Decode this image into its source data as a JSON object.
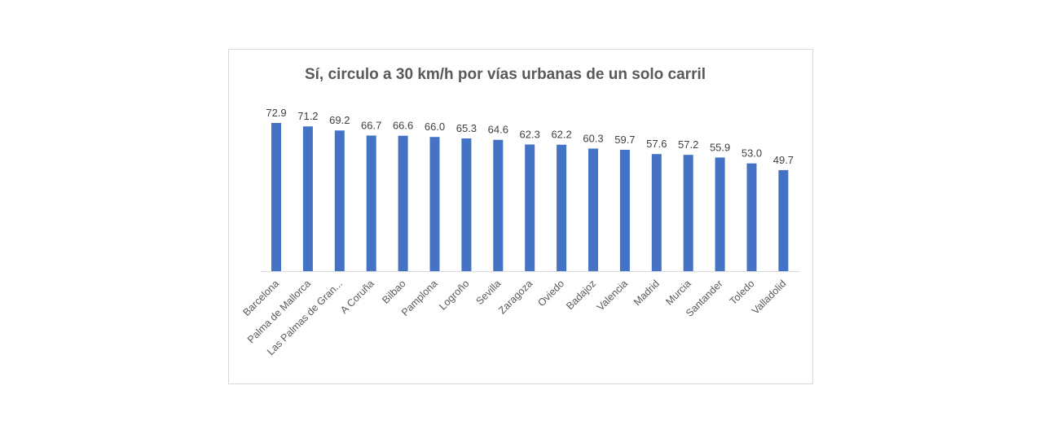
{
  "chart_data": {
    "type": "bar",
    "title": "Sí, circulo a 30 km/h por vías urbanas de un solo carril",
    "xlabel": "",
    "ylabel": "",
    "ylim": [
      0,
      72.9
    ],
    "grid": false,
    "legend": "none",
    "bar_color": "#4472C4",
    "categories": [
      "Barcelona",
      "Palma de Mallorca",
      "Las Palmas de Gran...",
      "A Coruña",
      "Bilbao",
      "Pamplona",
      "Logroño",
      "Sevilla",
      "Zaragoza",
      "Oviedo",
      "Badajoz",
      "Valencia",
      "Madrid",
      "Murcia",
      "Santander",
      "Toledo",
      "Valladolid"
    ],
    "values": [
      72.9,
      71.2,
      69.2,
      66.7,
      66.6,
      66.0,
      65.3,
      64.6,
      62.3,
      62.2,
      60.3,
      59.7,
      57.6,
      57.2,
      55.9,
      53.0,
      49.7
    ],
    "data_labels": [
      "72.9",
      "71.2",
      "69.2",
      "66.7",
      "66.6",
      "66.0",
      "65.3",
      "64.6",
      "62.3",
      "62.2",
      "60.3",
      "59.7",
      "57.6",
      "57.2",
      "55.9",
      "53.0",
      "49.7"
    ]
  }
}
